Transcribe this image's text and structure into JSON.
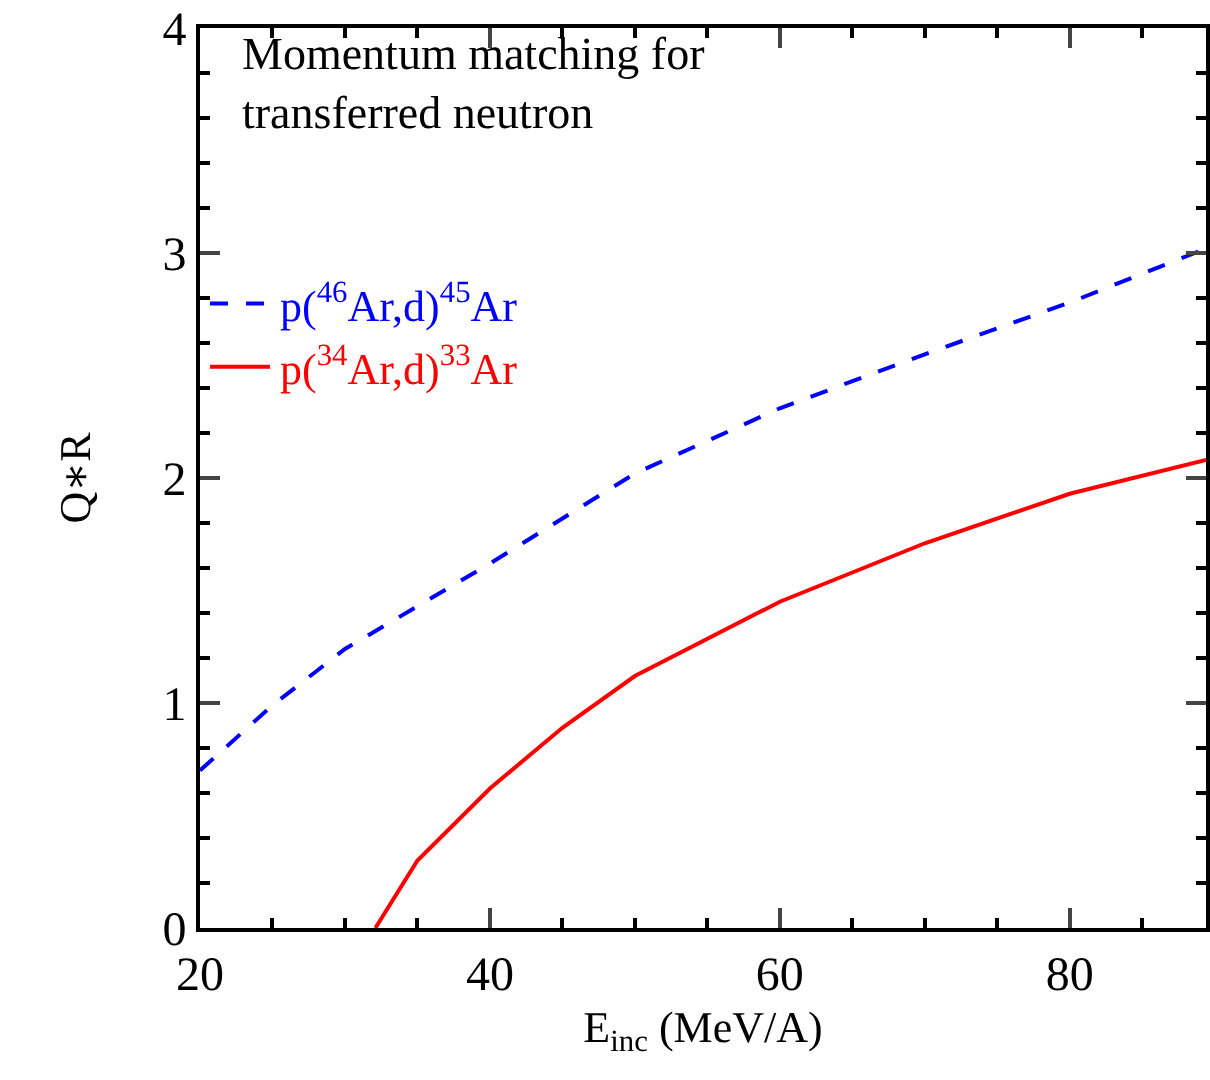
{
  "chart_data": {
    "type": "line",
    "title": "Momentum matching for transferred neutron",
    "xlabel": "E$_{inc}$ (MeV/A)",
    "ylabel": "Q∗R",
    "xlim": [
      20,
      89.4
    ],
    "xticks": [
      20,
      40,
      60,
      80
    ],
    "ylim": [
      0,
      4
    ],
    "yticks": [
      0,
      1,
      2,
      3,
      4
    ],
    "grid": false,
    "legend": "top left",
    "series": [
      {
        "name": "p($^{46}$Ar,d)$^{45}$Ar",
        "color": "#0000ff",
        "line_style": "dashed",
        "x": [
          20,
          25,
          30,
          40,
          50,
          60,
          70,
          80,
          89.4
        ],
        "values": [
          0.7,
          0.99,
          1.24,
          1.62,
          2.02,
          2.31,
          2.55,
          2.78,
          3.02
        ]
      },
      {
        "name": "p($^{34}$Ar,d)$^{33}$Ar",
        "color": "#ff0000",
        "line_style": "solid",
        "x": [
          32.1,
          35,
          40,
          45,
          50,
          60,
          70,
          80,
          89.4
        ],
        "values": [
          0,
          0.3,
          0.62,
          0.89,
          1.12,
          1.45,
          1.71,
          1.93,
          2.08
        ]
      }
    ]
  }
}
